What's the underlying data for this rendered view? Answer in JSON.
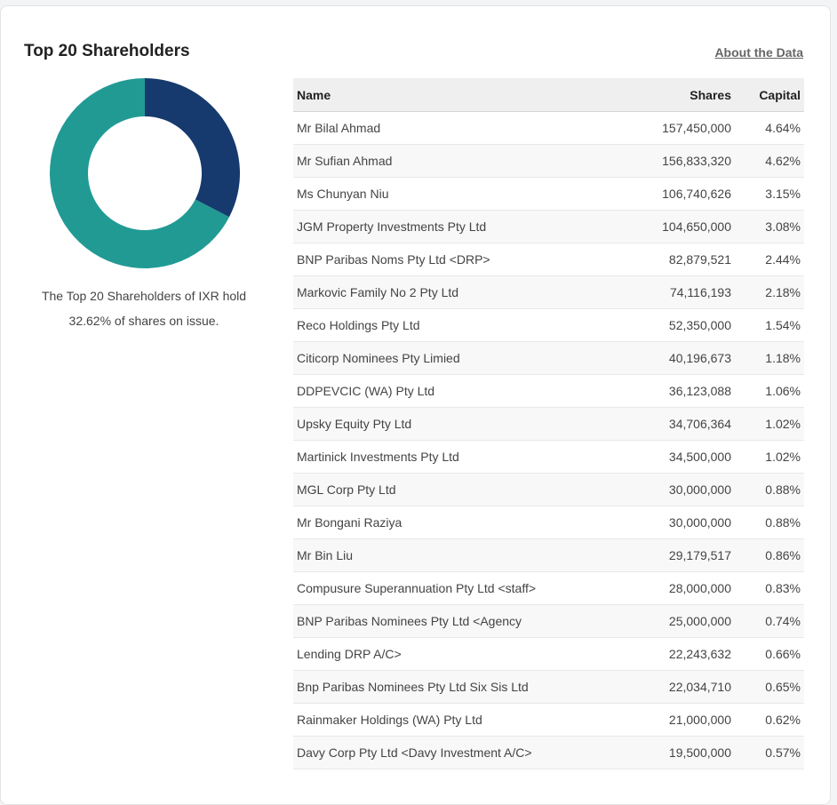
{
  "header": {
    "title": "Top 20 Shareholders",
    "about_link": "About the Data"
  },
  "summary": {
    "line1": "The Top 20 Shareholders of IXR hold",
    "line2": "32.62% of shares on issue."
  },
  "chart_data": {
    "type": "pie",
    "style": "donut",
    "values": [
      32.62,
      67.38
    ],
    "colors": [
      "#163a6e",
      "#219a94"
    ]
  },
  "table": {
    "columns": {
      "name": "Name",
      "shares": "Shares",
      "capital": "Capital"
    },
    "rows": [
      {
        "name": "Mr Bilal Ahmad",
        "shares": "157,450,000",
        "capital": "4.64%"
      },
      {
        "name": "Mr Sufian Ahmad",
        "shares": "156,833,320",
        "capital": "4.62%"
      },
      {
        "name": "Ms Chunyan Niu",
        "shares": "106,740,626",
        "capital": "3.15%"
      },
      {
        "name": "JGM Property Investments Pty Ltd",
        "shares": "104,650,000",
        "capital": "3.08%"
      },
      {
        "name": "BNP Paribas Noms Pty Ltd <DRP>",
        "shares": "82,879,521",
        "capital": "2.44%"
      },
      {
        "name": "Markovic Family No 2 Pty Ltd",
        "shares": "74,116,193",
        "capital": "2.18%"
      },
      {
        "name": "Reco Holdings Pty Ltd",
        "shares": "52,350,000",
        "capital": "1.54%"
      },
      {
        "name": "Citicorp Nominees Pty Limied",
        "shares": "40,196,673",
        "capital": "1.18%"
      },
      {
        "name": "DDPEVCIC (WA) Pty Ltd",
        "shares": "36,123,088",
        "capital": "1.06%"
      },
      {
        "name": "Upsky Equity Pty Ltd",
        "shares": "34,706,364",
        "capital": "1.02%"
      },
      {
        "name": "Martinick Investments Pty Ltd",
        "shares": "34,500,000",
        "capital": "1.02%"
      },
      {
        "name": "MGL Corp Pty Ltd",
        "shares": "30,000,000",
        "capital": "0.88%"
      },
      {
        "name": "Mr Bongani Raziya",
        "shares": "30,000,000",
        "capital": "0.88%"
      },
      {
        "name": "Mr Bin Liu",
        "shares": "29,179,517",
        "capital": "0.86%"
      },
      {
        "name": "Compusure Superannuation Pty Ltd <staff>",
        "shares": "28,000,000",
        "capital": "0.83%"
      },
      {
        "name": "BNP Paribas Nominees Pty Ltd <Agency",
        "shares": "25,000,000",
        "capital": "0.74%"
      },
      {
        "name": "Lending DRP A/C>",
        "shares": "22,243,632",
        "capital": "0.66%"
      },
      {
        "name": "Bnp Paribas Nominees Pty Ltd Six Sis Ltd",
        "shares": "22,034,710",
        "capital": "0.65%"
      },
      {
        "name": "Rainmaker Holdings (WA) Pty Ltd",
        "shares": "21,000,000",
        "capital": "0.62%"
      },
      {
        "name": "Davy Corp Pty Ltd <Davy Investment A/C>",
        "shares": "19,500,000",
        "capital": "0.57%"
      }
    ]
  }
}
